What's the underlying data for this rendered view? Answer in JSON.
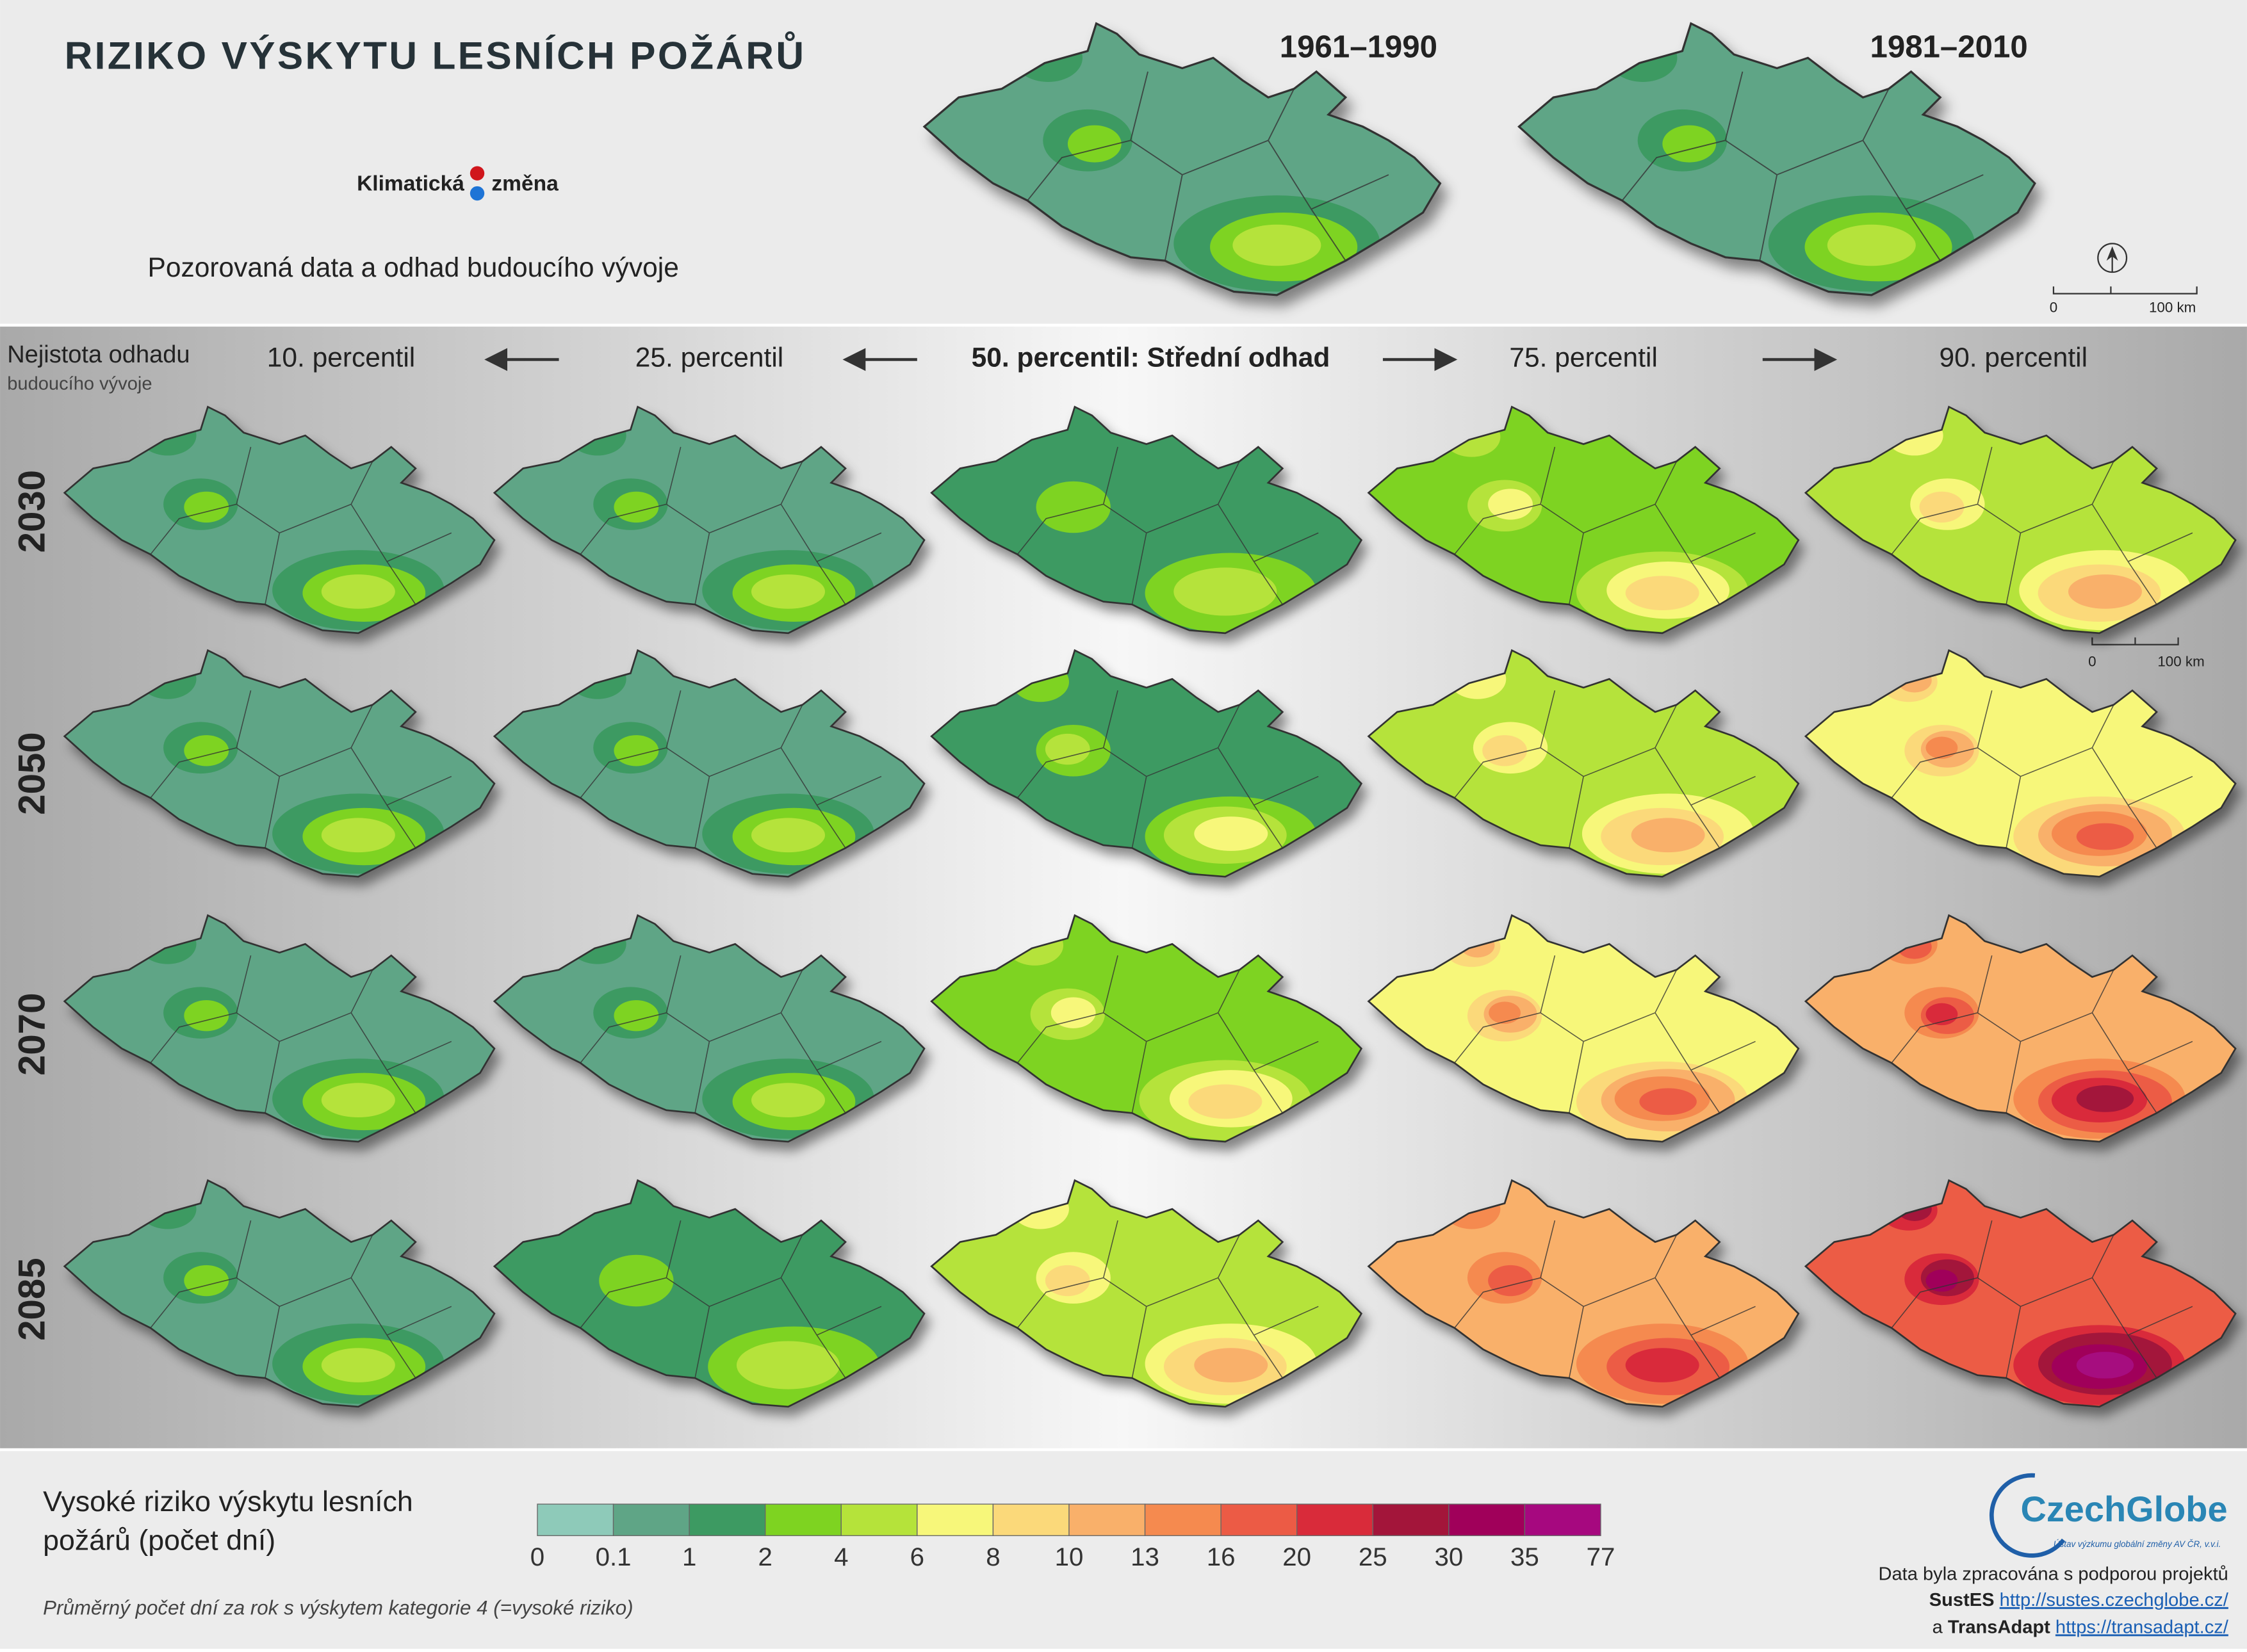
{
  "header": {
    "title": "RIZIKO VÝSKYTU LESNÍCH POŽÁRŮ",
    "logo": [
      "Klimatická",
      "změna"
    ],
    "subtitle": "Pozorovaná data a odhad budoucího vývoje",
    "periods": [
      "1961–1990",
      "1981–2010"
    ],
    "scale_bar": [
      "0",
      "100 km"
    ]
  },
  "grid": {
    "uncertainty": [
      "Nejistota odhadu",
      "budoucího vývoje"
    ],
    "percentiles": [
      "10. percentil",
      "25. percentil",
      "50. percentil: Střední odhad",
      "75. percentil",
      "90. percentil"
    ],
    "years": [
      "2030",
      "2050",
      "2070",
      "2085"
    ],
    "scale_bar": [
      "0",
      "100 km"
    ]
  },
  "legend": {
    "title": [
      "Vysoké riziko výskytu lesních",
      "požárů (počet dní)"
    ],
    "ticks": [
      0,
      0.1,
      1,
      2,
      4,
      6,
      8,
      10,
      13,
      16,
      20,
      25,
      30,
      35,
      77
    ],
    "colors": [
      "#8ecab9",
      "#5fa586",
      "#3d9a62",
      "#7ed321",
      "#b5e33a",
      "#f7f77a",
      "#fbd97a",
      "#f9b06a",
      "#f58a4f",
      "#ec5b45",
      "#d92b3a",
      "#a3153a",
      "#a0005a",
      "#a6087f"
    ],
    "note": "Průměrný počet dní za rok s výskytem kategorie 4 (=vysoké riziko)"
  },
  "credits": {
    "logo": "CzechGlobe",
    "institute": "Ústav výzkumu globální změny AV ČR, v.v.i.",
    "line1": "Data byla zpracována s podporou projektů",
    "project1": "SustES",
    "url1": "http://sustes.czechglobe.cz/",
    "prefix": "a",
    "project2": "TransAdapt",
    "url2": "https://transadapt.cz/"
  }
}
